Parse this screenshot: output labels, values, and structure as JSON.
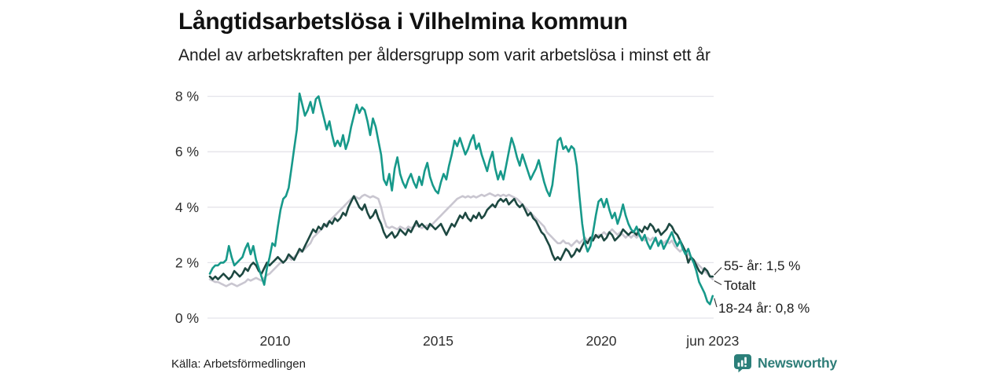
{
  "header": {
    "title": "Långtidsarbetslösa i Vilhelmina kommun",
    "subtitle": "Andel av arbetskraften per åldersgrupp som varit arbetslösa i minst ett år"
  },
  "footer": {
    "source": "Källa: Arbetsförmedlingen",
    "brand": "Newsworthy",
    "brand_icon": "bar-chart-speech-bubble-icon"
  },
  "colors": {
    "accent_teal": "#17998a",
    "dark_green": "#1d4841",
    "light_gray": "#c9c6d0",
    "grid": "#e4e3ea",
    "axis_text": "#2e2e2e",
    "annotation_text": "#191919",
    "connector": "#3a3a3a",
    "brand_teal": "#2e7d78"
  },
  "chart_data": {
    "type": "line",
    "title": "Långtidsarbetslösa i Vilhelmina kommun",
    "subtitle": "Andel av arbetskraften per åldersgrupp som varit arbetslösa i minst ett år",
    "unit": "%",
    "frequency": "monthly",
    "start_year": 2008,
    "end_label_note": "series labelled at line ends, no legend box",
    "grid": true,
    "x_axis": {
      "range": [
        2008,
        2023.4167
      ],
      "ticks": [
        {
          "t": 2010,
          "label": "2010"
        },
        {
          "t": 2015,
          "label": "2015"
        },
        {
          "t": 2020,
          "label": "2020"
        },
        {
          "t": 2023.4167,
          "label": "jun 2023"
        }
      ]
    },
    "y_axis": {
      "range": [
        0,
        8.3
      ],
      "ticks": [
        {
          "v": 0,
          "label": "0 %"
        },
        {
          "v": 2,
          "label": "2 %"
        },
        {
          "v": 4,
          "label": "4 %"
        },
        {
          "v": 6,
          "label": "6 %"
        },
        {
          "v": 8,
          "label": "8 %"
        }
      ]
    },
    "series": [
      {
        "name": "Totalt",
        "color": "#c9c6d0",
        "end_label": "Totalt",
        "last_value": 1.4,
        "values": [
          1.4,
          1.35,
          1.3,
          1.3,
          1.25,
          1.2,
          1.15,
          1.2,
          1.25,
          1.2,
          1.15,
          1.2,
          1.25,
          1.3,
          1.4,
          1.35,
          1.4,
          1.45,
          1.4,
          1.35,
          1.45,
          1.55,
          1.6,
          1.7,
          1.8,
          1.9,
          2.0,
          2.0,
          2.1,
          2.2,
          2.1,
          2.2,
          2.3,
          2.4,
          2.4,
          2.5,
          2.6,
          2.7,
          2.9,
          3.0,
          3.1,
          3.2,
          3.3,
          3.4,
          3.5,
          3.6,
          3.7,
          3.8,
          3.9,
          4.0,
          4.1,
          4.2,
          4.3,
          4.4,
          4.35,
          4.3,
          4.4,
          4.45,
          4.4,
          4.35,
          4.4,
          4.35,
          4.3,
          4.0,
          3.6,
          3.3,
          3.25,
          3.3,
          3.25,
          3.2,
          3.3,
          3.25,
          3.2,
          3.3,
          3.25,
          3.3,
          3.35,
          3.3,
          3.25,
          3.3,
          3.35,
          3.3,
          3.4,
          3.5,
          3.6,
          3.7,
          3.8,
          3.9,
          4.0,
          4.1,
          4.2,
          4.3,
          4.35,
          4.4,
          4.35,
          4.4,
          4.35,
          4.4,
          4.35,
          4.4,
          4.45,
          4.4,
          4.45,
          4.5,
          4.45,
          4.4,
          4.45,
          4.4,
          4.45,
          4.4,
          4.45,
          4.4,
          4.35,
          4.3,
          4.2,
          4.1,
          4.0,
          3.9,
          3.8,
          3.7,
          3.6,
          3.5,
          3.4,
          3.3,
          3.1,
          3.0,
          2.9,
          2.8,
          2.7,
          2.7,
          2.8,
          2.7,
          2.7,
          2.6,
          2.7,
          2.8,
          2.7,
          2.8,
          2.9,
          2.8,
          2.9,
          3.0,
          2.9,
          3.0,
          3.0,
          3.1,
          3.0,
          3.1,
          3.2,
          3.1,
          3.0,
          3.1,
          3.0,
          2.9,
          3.0,
          2.9,
          3.0,
          2.9,
          3.0,
          2.9,
          2.8,
          2.9,
          2.8,
          2.9,
          2.8,
          2.7,
          2.8,
          2.7,
          2.8,
          2.7,
          2.8,
          2.6,
          2.5,
          2.4,
          2.5,
          2.4,
          2.3,
          2.2,
          2.1,
          2.0,
          1.9,
          1.8,
          1.7,
          1.6,
          1.5,
          1.4
        ]
      },
      {
        "name": "55- år",
        "color": "#1d4841",
        "end_label": "55- år: 1,5 %",
        "last_value": 1.5,
        "values": [
          1.5,
          1.4,
          1.5,
          1.4,
          1.5,
          1.6,
          1.5,
          1.4,
          1.5,
          1.7,
          1.6,
          1.5,
          1.6,
          1.8,
          1.7,
          1.9,
          2.0,
          1.9,
          1.7,
          1.6,
          1.8,
          2.0,
          1.9,
          2.0,
          2.1,
          2.2,
          2.1,
          2.0,
          2.1,
          2.3,
          2.2,
          2.1,
          2.3,
          2.5,
          2.4,
          2.6,
          2.8,
          3.0,
          3.2,
          3.1,
          3.3,
          3.2,
          3.4,
          3.3,
          3.5,
          3.4,
          3.6,
          3.5,
          3.6,
          3.8,
          3.7,
          4.0,
          4.2,
          4.4,
          4.2,
          4.0,
          3.9,
          4.1,
          3.8,
          3.6,
          3.7,
          3.9,
          3.6,
          3.4,
          3.1,
          2.9,
          3.0,
          3.1,
          2.9,
          3.0,
          3.2,
          3.1,
          3.0,
          3.2,
          3.1,
          3.3,
          3.5,
          3.3,
          3.4,
          3.3,
          3.2,
          3.4,
          3.3,
          3.2,
          3.3,
          3.4,
          3.2,
          3.0,
          3.2,
          3.4,
          3.3,
          3.5,
          3.7,
          3.6,
          3.8,
          3.6,
          3.5,
          3.7,
          3.6,
          3.8,
          3.6,
          3.7,
          3.9,
          4.0,
          4.1,
          4.0,
          4.2,
          4.3,
          4.2,
          4.3,
          4.1,
          4.2,
          4.3,
          4.1,
          4.0,
          4.1,
          3.9,
          3.7,
          3.8,
          3.6,
          3.5,
          3.3,
          3.1,
          3.0,
          2.8,
          2.6,
          2.3,
          2.1,
          2.2,
          2.1,
          2.3,
          2.5,
          2.4,
          2.2,
          2.3,
          2.5,
          2.4,
          2.6,
          2.8,
          2.7,
          2.9,
          2.8,
          3.0,
          2.9,
          3.0,
          2.8,
          2.9,
          3.1,
          3.0,
          2.8,
          2.9,
          3.0,
          3.2,
          3.1,
          3.0,
          3.1,
          3.1,
          3.0,
          3.2,
          3.1,
          3.3,
          3.2,
          3.4,
          3.3,
          3.1,
          3.2,
          3.0,
          3.1,
          3.2,
          3.4,
          3.3,
          3.1,
          3.0,
          2.8,
          2.6,
          2.4,
          2.0,
          2.2,
          2.1,
          1.9,
          1.7,
          1.6,
          1.8,
          1.7,
          1.5,
          1.5
        ]
      },
      {
        "name": "18-24 år",
        "color": "#17998a",
        "end_label": "18-24 år: 0,8 %",
        "last_value": 0.8,
        "values": [
          1.6,
          1.8,
          1.9,
          1.9,
          2.0,
          2.0,
          2.1,
          2.6,
          2.2,
          1.9,
          2.0,
          2.1,
          2.2,
          2.5,
          2.7,
          2.3,
          2.6,
          2.1,
          1.8,
          1.5,
          1.2,
          1.8,
          2.2,
          2.7,
          2.6,
          3.3,
          3.9,
          4.3,
          4.4,
          4.7,
          5.4,
          6.1,
          6.8,
          8.1,
          7.7,
          7.3,
          7.5,
          7.8,
          7.4,
          7.9,
          8.0,
          7.6,
          7.2,
          6.8,
          7.1,
          6.6,
          6.2,
          6.4,
          6.2,
          6.6,
          6.1,
          6.4,
          6.9,
          7.3,
          7.7,
          7.4,
          7.6,
          7.5,
          7.1,
          6.6,
          7.2,
          6.9,
          6.4,
          5.9,
          5.0,
          4.8,
          5.2,
          4.6,
          5.4,
          5.8,
          5.2,
          4.9,
          4.7,
          5.0,
          5.2,
          4.9,
          4.7,
          5.1,
          4.8,
          5.3,
          5.6,
          5.1,
          4.8,
          4.6,
          4.5,
          4.9,
          5.2,
          5.0,
          5.5,
          5.9,
          6.4,
          6.2,
          6.5,
          6.2,
          5.9,
          6.1,
          6.4,
          6.6,
          6.1,
          6.3,
          5.9,
          5.6,
          5.3,
          5.7,
          6.0,
          5.4,
          5.0,
          5.3,
          5.0,
          5.5,
          6.0,
          6.5,
          6.2,
          5.8,
          5.5,
          5.9,
          5.6,
          5.3,
          5.0,
          5.2,
          5.4,
          5.7,
          5.3,
          4.9,
          4.6,
          4.4,
          4.8,
          5.6,
          6.4,
          6.5,
          6.1,
          6.2,
          6.0,
          6.2,
          6.1,
          5.5,
          4.4,
          3.4,
          2.7,
          2.4,
          2.6,
          3.1,
          3.7,
          4.2,
          4.3,
          4.0,
          4.3,
          3.9,
          3.6,
          3.8,
          3.4,
          3.7,
          4.1,
          3.7,
          3.4,
          3.2,
          3.1,
          3.3,
          3.0,
          2.8,
          3.0,
          2.7,
          2.5,
          2.7,
          2.9,
          2.6,
          2.8,
          2.5,
          2.7,
          2.9,
          3.1,
          2.8,
          2.6,
          2.8,
          2.5,
          2.3,
          2.5,
          2.2,
          2.0,
          1.7,
          1.3,
          1.1,
          0.9,
          0.6,
          0.5,
          0.8
        ]
      }
    ]
  }
}
